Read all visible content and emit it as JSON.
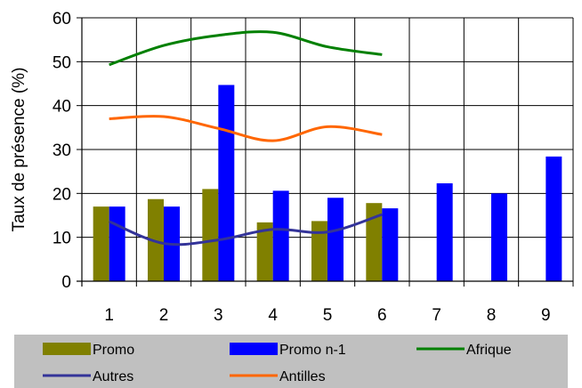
{
  "chart_data": {
    "type": "bar",
    "ylabel": "Taux de présence (%)",
    "xlabel": "",
    "ylim": [
      0,
      60
    ],
    "yticks": [
      0,
      10,
      20,
      30,
      40,
      50,
      60
    ],
    "categories": [
      "1",
      "2",
      "3",
      "4",
      "5",
      "6",
      "7",
      "8",
      "9"
    ],
    "grid": "horizontal and vertical",
    "legend_position": "bottom",
    "series": [
      {
        "name": "Promo",
        "type": "bar",
        "color": "#808000",
        "values": [
          17,
          18.7,
          21,
          13.4,
          13.7,
          17.8,
          null,
          null,
          null
        ]
      },
      {
        "name": "Promo n-1",
        "type": "bar",
        "color": "#0000ff",
        "values": [
          17,
          17,
          44.7,
          20.6,
          19,
          16.6,
          22.3,
          20,
          28.4
        ]
      },
      {
        "name": "Afrique",
        "type": "line",
        "color": "#008000",
        "values": [
          49.3,
          53.7,
          56,
          56.7,
          53.4,
          51.6,
          null,
          null,
          null
        ]
      },
      {
        "name": "Autres",
        "type": "line",
        "color": "#333399",
        "values": [
          13.6,
          8.6,
          9.4,
          11.8,
          11.2,
          15.2,
          null,
          null,
          null
        ]
      },
      {
        "name": "Antilles",
        "type": "line",
        "color": "#ff6600",
        "values": [
          37,
          37.5,
          34.8,
          32,
          35.2,
          33.4,
          null,
          null,
          null
        ]
      }
    ]
  }
}
